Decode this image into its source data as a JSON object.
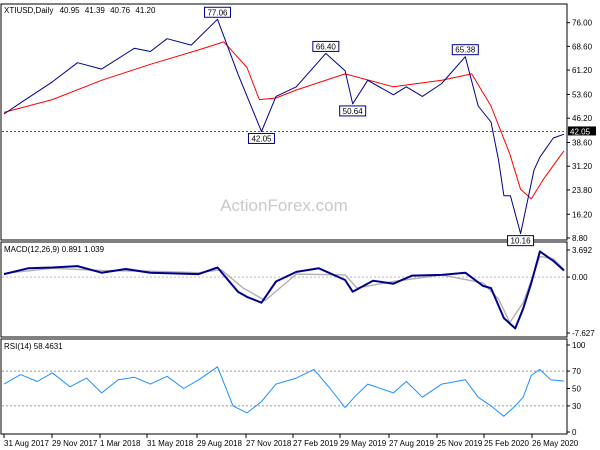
{
  "chart_data": [
    {
      "type": "line",
      "title": "XTIUSD,Daily",
      "ohlc": {
        "open": "40.95",
        "high": "41.39",
        "low": "40.76",
        "close": "41.20"
      },
      "watermark": "ActionForex.com",
      "ylim": [
        8.8,
        81.2
      ],
      "yticks": [
        "76.00",
        "68.60",
        "61.20",
        "53.60",
        "46.20",
        "38.60",
        "31.20",
        "23.80",
        "16.20",
        "8.80"
      ],
      "x_date_labels": [
        "31 Aug 2017",
        "29 Nov 2017",
        "1 Mar 2018",
        "31 May 2018",
        "29 Aug 2018",
        "27 Nov 2018",
        "27 Feb 2019",
        "29 May 2019",
        "27 Aug 2019",
        "25 Nov 2019",
        "25 Feb 2020",
        "26 May 2020"
      ],
      "price_series": {
        "x": [
          "2017-08-31",
          "2017-10-01",
          "2017-11-29",
          "2018-01-15",
          "2018-03-01",
          "2018-05-01",
          "2018-05-31",
          "2018-07-01",
          "2018-08-15",
          "2018-10-03",
          "2018-11-10",
          "2018-12-24",
          "2019-01-20",
          "2019-02-27",
          "2019-04-23",
          "2019-05-29",
          "2019-06-12",
          "2019-07-10",
          "2019-08-27",
          "2019-09-20",
          "2019-10-20",
          "2019-11-25",
          "2020-01-08",
          "2020-02-01",
          "2020-02-25",
          "2020-03-10",
          "2020-03-20",
          "2020-04-01",
          "2020-04-20",
          "2020-04-30",
          "2020-05-15",
          "2020-05-26",
          "2020-06-20",
          "2020-07-10"
        ],
        "close": [
          47.5,
          51.0,
          57.5,
          63.5,
          61.5,
          68.0,
          67.0,
          71.0,
          69.0,
          77.06,
          60.0,
          42.05,
          53.0,
          56.0,
          66.4,
          61.0,
          50.64,
          58.0,
          53.5,
          56.0,
          53.0,
          57.0,
          65.38,
          50.0,
          45.0,
          33.0,
          22.0,
          22.0,
          10.16,
          18.0,
          30.0,
          34.0,
          40.0,
          41.2
        ]
      },
      "ma_series": {
        "x": [
          "2017-08-31",
          "2017-11-29",
          "2018-03-01",
          "2018-05-31",
          "2018-08-29",
          "2018-10-15",
          "2018-11-27",
          "2018-12-20",
          "2019-01-20",
          "2019-02-27",
          "2019-05-29",
          "2019-08-27",
          "2019-11-25",
          "2020-01-20",
          "2020-02-25",
          "2020-03-31",
          "2020-04-20",
          "2020-05-10",
          "2020-06-01",
          "2020-07-10"
        ],
        "values": [
          48.0,
          52.0,
          58.0,
          63.0,
          67.5,
          70.0,
          62.0,
          52.0,
          52.5,
          55.0,
          60.0,
          56.0,
          58.0,
          60.0,
          50.0,
          35.0,
          24.0,
          21.0,
          27.0,
          36.0
        ]
      },
      "annotations": [
        {
          "label": "77.06",
          "value": 77.06
        },
        {
          "label": "66.40",
          "value": 66.4
        },
        {
          "label": "65.38",
          "value": 65.38
        },
        {
          "label": "50.64",
          "value": 50.64
        },
        {
          "label": "42.05",
          "value": 42.05
        },
        {
          "label": "10.16",
          "value": 10.16
        }
      ],
      "hline": {
        "value": 42.05
      },
      "current_label": "42.05",
      "colors": {
        "price": "#00008b",
        "ma": "#ff0000",
        "hline": "#555555"
      }
    },
    {
      "type": "line",
      "title": "MACD(12,26,9) 0.891 1.039",
      "ylim": [
        -7.627,
        3.692
      ],
      "yticks": [
        "3.692",
        "0.00",
        "-7.627"
      ],
      "macd": {
        "x": [
          "2017-08-31",
          "2017-10-15",
          "2017-11-29",
          "2018-01-15",
          "2018-03-01",
          "2018-04-15",
          "2018-05-31",
          "2018-07-10",
          "2018-08-29",
          "2018-10-03",
          "2018-11-10",
          "2018-11-27",
          "2018-12-24",
          "2019-01-20",
          "2019-02-27",
          "2019-04-10",
          "2019-05-29",
          "2019-06-12",
          "2019-07-20",
          "2019-08-27",
          "2019-10-01",
          "2019-11-25",
          "2020-01-08",
          "2020-02-10",
          "2020-02-25",
          "2020-03-20",
          "2020-04-10",
          "2020-04-25",
          "2020-05-10",
          "2020-05-26",
          "2020-06-20",
          "2020-07-10"
        ],
        "values": [
          0.4,
          1.2,
          1.3,
          1.5,
          0.6,
          1.1,
          0.6,
          0.5,
          0.4,
          1.3,
          -2.0,
          -2.7,
          -3.5,
          -0.6,
          0.7,
          1.2,
          -0.4,
          -2.0,
          -0.5,
          -0.9,
          0.2,
          0.3,
          0.6,
          -1.2,
          -1.5,
          -5.6,
          -7.0,
          -4.3,
          -0.8,
          3.5,
          2.2,
          0.891
        ]
      },
      "signal": {
        "x": [
          "2017-08-31",
          "2017-11-29",
          "2018-03-01",
          "2018-05-31",
          "2018-08-29",
          "2018-10-10",
          "2018-11-20",
          "2018-12-31",
          "2019-02-27",
          "2019-05-29",
          "2019-06-20",
          "2019-08-27",
          "2019-11-25",
          "2020-02-10",
          "2020-03-10",
          "2020-03-31",
          "2020-04-25",
          "2020-05-26",
          "2020-06-20",
          "2020-07-10"
        ],
        "values": [
          0.5,
          1.2,
          0.9,
          0.8,
          0.6,
          1.0,
          -1.5,
          -3.2,
          0.4,
          0.3,
          -1.5,
          -0.6,
          0.3,
          -0.8,
          -3.0,
          -6.2,
          -3.5,
          2.8,
          2.5,
          1.039
        ]
      },
      "colors": {
        "macd": "#00008b",
        "signal": "#b0b0b0"
      }
    },
    {
      "type": "line",
      "title": "RSI(14) 58.4631",
      "ylim": [
        0,
        100
      ],
      "yticks": [
        "100",
        "70",
        "50",
        "30",
        "0"
      ],
      "levels": [
        70,
        30
      ],
      "values": {
        "x": [
          "2017-08-31",
          "2017-10-01",
          "2017-11-01",
          "2017-11-29",
          "2018-01-01",
          "2018-02-01",
          "2018-03-01",
          "2018-04-01",
          "2018-05-01",
          "2018-05-31",
          "2018-07-01",
          "2018-08-01",
          "2018-08-29",
          "2018-10-03",
          "2018-11-01",
          "2018-11-27",
          "2018-12-24",
          "2019-01-20",
          "2019-02-27",
          "2019-04-01",
          "2019-05-01",
          "2019-05-29",
          "2019-06-15",
          "2019-07-10",
          "2019-08-27",
          "2019-09-20",
          "2019-10-20",
          "2019-11-25",
          "2020-01-08",
          "2020-02-01",
          "2020-02-25",
          "2020-03-20",
          "2020-04-10",
          "2020-04-25",
          "2020-05-10",
          "2020-05-26",
          "2020-06-15",
          "2020-07-10"
        ],
        "values": [
          55,
          66,
          58,
          68,
          52,
          62,
          45,
          60,
          63,
          55,
          64,
          50,
          60,
          75,
          30,
          22,
          35,
          55,
          62,
          72,
          50,
          28,
          40,
          55,
          45,
          58,
          40,
          55,
          60,
          40,
          30,
          18,
          30,
          40,
          65,
          72,
          60,
          58.4631
        ]
      },
      "colors": {
        "rsi": "#1e90ff",
        "levels": "#999999"
      }
    }
  ]
}
